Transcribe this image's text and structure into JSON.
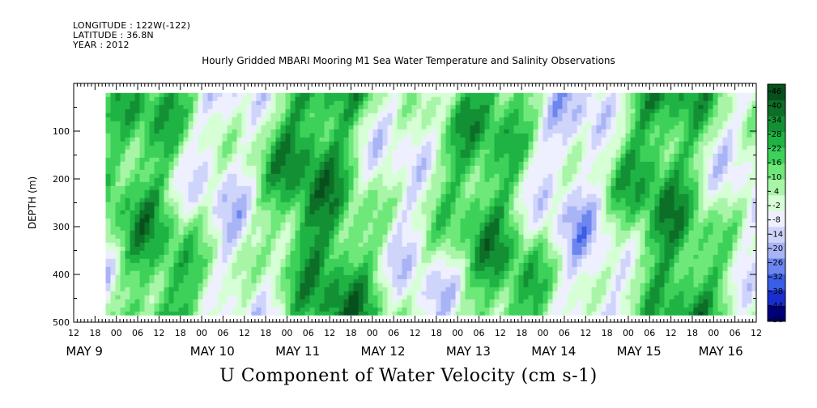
{
  "header": {
    "longitude": "LONGITUDE : 122W(-122)",
    "latitude": "LATITUDE : 36.8N",
    "year": "YEAR : 2012"
  },
  "title": "Hourly Gridded MBARI Mooring M1 Sea Water Temperature and Salinity Observations",
  "bottom_title": "U Component of Water Velocity (cm s-1)",
  "chart_data": {
    "type": "heatmap",
    "variable": "U Component of Water Velocity (cm s-1)",
    "ylabel": "DEPTH (m)",
    "yaxis_inverted": true,
    "ylim": [
      0,
      500
    ],
    "yticks": [
      100,
      200,
      300,
      400,
      500
    ],
    "xlim_hours_from_may9_00": [
      -12,
      180
    ],
    "hour_tick_labels": [
      "12",
      "18",
      "00",
      "06",
      "12",
      "18",
      "00",
      "06",
      "12",
      "18",
      "00",
      "06",
      "12",
      "18",
      "00",
      "06",
      "12",
      "18",
      "00",
      "06",
      "12",
      "18",
      "00",
      "06",
      "12",
      "18",
      "00",
      "06",
      "12",
      "18",
      "00",
      "06",
      "12"
    ],
    "day_labels": [
      "MAY 9",
      "MAY 10",
      "MAY 11",
      "MAY 12",
      "MAY 13",
      "MAY 14",
      "MAY 15",
      "MAY 16"
    ],
    "data_start_hour": -3,
    "depth_range": [
      20,
      485
    ],
    "colorbar": {
      "labels": [
        "46",
        "40",
        "34",
        "28",
        "22",
        "16",
        "10",
        "4",
        "-2",
        "-8",
        "-14",
        "-20",
        "-26",
        "-32",
        "-38",
        "-44",
        "-50"
      ],
      "min": -50,
      "max": 50,
      "colors": [
        "#00007a",
        "#1a2ecf",
        "#3a5ee6",
        "#6d86ef",
        "#a9b4f6",
        "#cfd4fb",
        "#eef0ff",
        "#d6ffd6",
        "#a8f5a8",
        "#6fe87a",
        "#3ed15a",
        "#1fb344",
        "#149034",
        "#0c6e27",
        "#07501c"
      ]
    },
    "summary": "Values mostly between -20 and +30 cm/s; alternating bands of positive (green) and negative (blue/lavender) flow over May 9-16, 2012, depth 20-485 m."
  }
}
